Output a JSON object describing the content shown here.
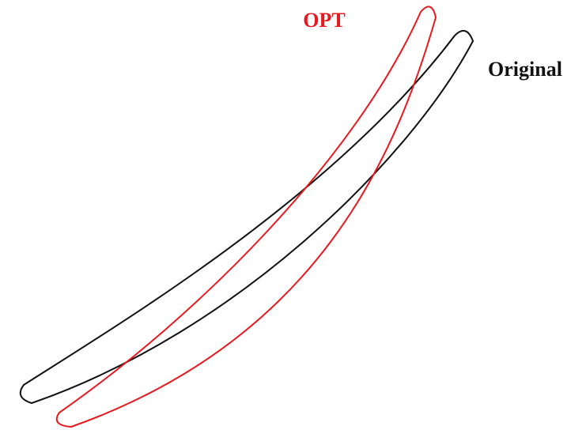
{
  "labels": {
    "opt": "OPT",
    "original": "Original"
  }
}
